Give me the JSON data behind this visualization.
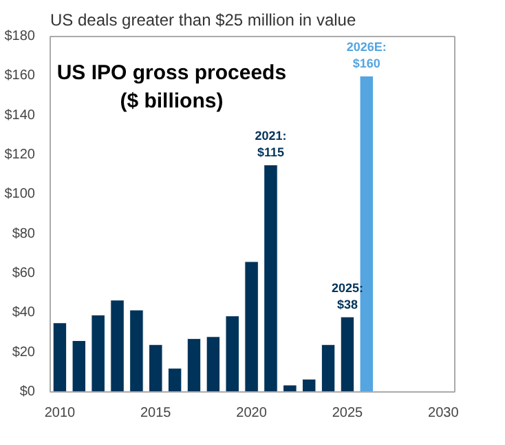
{
  "chart_data": {
    "type": "bar",
    "title": "US IPO gross proceeds\n($ billions)",
    "subtitle": "US deals greater than $25 million in value",
    "x": [
      2010,
      2011,
      2012,
      2013,
      2014,
      2015,
      2016,
      2017,
      2018,
      2019,
      2020,
      2021,
      2022,
      2023,
      2024,
      2025,
      2026
    ],
    "values": [
      35,
      26,
      39,
      46.5,
      41.5,
      24,
      12,
      27,
      28,
      38.5,
      66,
      115,
      3.5,
      6.5,
      24,
      38,
      160
    ],
    "colors": [
      "#003359",
      "#003359",
      "#003359",
      "#003359",
      "#003359",
      "#003359",
      "#003359",
      "#003359",
      "#003359",
      "#003359",
      "#003359",
      "#003359",
      "#003359",
      "#003359",
      "#003359",
      "#003359",
      "#55a5e0"
    ],
    "xlim": [
      2009.5,
      2030.6
    ],
    "xticks": [
      2010,
      2015,
      2020,
      2025,
      2030
    ],
    "ylim": [
      0,
      180
    ],
    "yticks": [
      {
        "value": 0,
        "label": "$0"
      },
      {
        "value": 20,
        "label": "$20"
      },
      {
        "value": 40,
        "label": "$40"
      },
      {
        "value": 60,
        "label": "$60"
      },
      {
        "value": 80,
        "label": "$80"
      },
      {
        "value": 100,
        "label": "$100"
      },
      {
        "value": 120,
        "label": "$120"
      },
      {
        "value": 140,
        "label": "$140"
      },
      {
        "value": 160,
        "label": "$160"
      },
      {
        "value": 180,
        "label": "$180"
      }
    ],
    "annotations": [
      {
        "text": "2021:\n$115",
        "x": 2021,
        "y": 115
      },
      {
        "text": "2025:\n$38",
        "x": 2025,
        "y": 38
      },
      {
        "text": "2026E:\n$160",
        "x": 2026,
        "y": 160
      }
    ],
    "grid": false
  }
}
